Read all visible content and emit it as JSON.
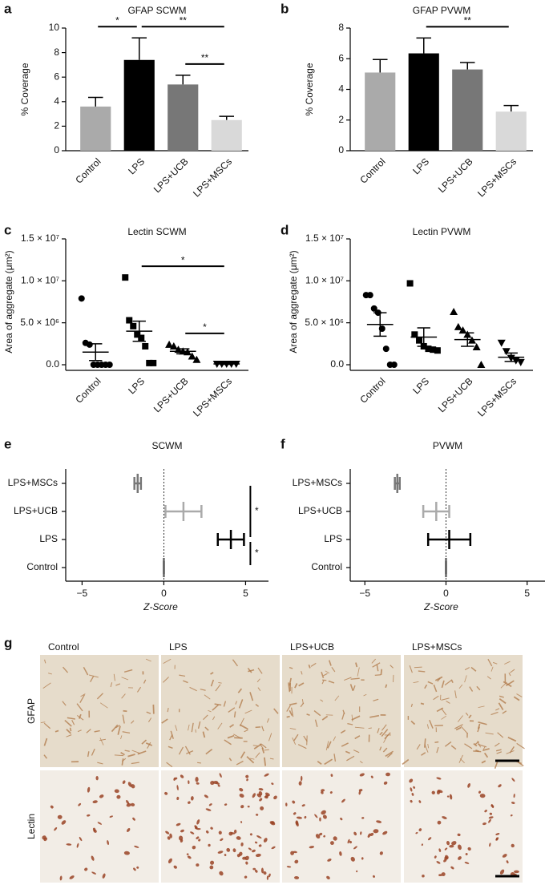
{
  "chart_data": [
    {
      "type": "bar",
      "panel": "a",
      "title": "GFAP SCWM",
      "ylabel": "% Coverage",
      "categories": [
        "Control",
        "LPS",
        "LPS+UCB",
        "LPS+MSCs"
      ],
      "values": [
        3.6,
        7.4,
        5.4,
        2.5
      ],
      "errors": [
        0.75,
        1.8,
        0.75,
        0.3
      ],
      "colors": [
        "#aaaaaa",
        "#000000",
        "#777777",
        "#d9d9d9"
      ],
      "ylim": [
        0,
        10
      ],
      "yticks": [
        0,
        2,
        4,
        6,
        8,
        10
      ],
      "significance": [
        {
          "from": "Control",
          "to": "LPS",
          "label": "*"
        },
        {
          "from": "LPS+UCB",
          "to": "LPS+MSCs",
          "label": "**"
        },
        {
          "from": "LPS",
          "to": "LPS+MSCs",
          "label": "**"
        }
      ]
    },
    {
      "type": "bar",
      "panel": "b",
      "title": "GFAP PVWM",
      "ylabel": "% Coverage",
      "categories": [
        "Control",
        "LPS",
        "LPS+UCB",
        "LPS+MSCs"
      ],
      "values": [
        5.1,
        6.35,
        5.3,
        2.55
      ],
      "errors": [
        0.85,
        1.0,
        0.45,
        0.4
      ],
      "colors": [
        "#aaaaaa",
        "#000000",
        "#777777",
        "#d9d9d9"
      ],
      "ylim": [
        0,
        8
      ],
      "yticks": [
        0,
        2,
        4,
        6,
        8
      ],
      "significance": [
        {
          "from": "LPS",
          "to": "LPS+MSCs",
          "label": "**"
        }
      ]
    },
    {
      "type": "dotplot",
      "panel": "c",
      "title": "Lectin SCWM",
      "ylabel": "Area of aggregate (μm²)",
      "categories": [
        "Control",
        "LPS",
        "LPS+UCB",
        "LPS+MSCs"
      ],
      "markers": [
        "circle",
        "square",
        "triangle",
        "triangle-down"
      ],
      "points": [
        [
          7900000,
          2600000,
          2400000,
          0,
          0,
          0,
          0,
          0
        ],
        [
          10400000,
          5300000,
          4600000,
          3600000,
          3200000,
          2200000,
          200000,
          200000
        ],
        [
          2400000,
          2200000,
          1800000,
          1600000,
          1500000,
          1000000,
          600000
        ],
        [
          100000,
          100000,
          100000,
          100000,
          100000
        ]
      ],
      "means": [
        1500000,
        4000000,
        1600000,
        100000
      ],
      "errors": [
        1000000,
        1200000,
        300000,
        50000
      ],
      "ylim": [
        0,
        15000000
      ],
      "yticks": [
        {
          "value": 0,
          "label": "0.0"
        },
        {
          "value": 5000000,
          "label": "5.0 × 10⁶"
        },
        {
          "value": 10000000,
          "label": "1.0 × 10⁷"
        },
        {
          "value": 15000000,
          "label": "1.5 × 10⁷"
        }
      ],
      "significance": [
        {
          "from": "LPS+UCB",
          "to": "LPS+MSCs",
          "label": "*"
        },
        {
          "from": "LPS",
          "to": "LPS+MSCs",
          "label": "*"
        }
      ]
    },
    {
      "type": "dotplot",
      "panel": "d",
      "title": "Lectin PVWM",
      "ylabel": "Area of aggregate (μm²)",
      "categories": [
        "Control",
        "LPS",
        "LPS+UCB",
        "LPS+MSCs"
      ],
      "markers": [
        "circle",
        "square",
        "triangle",
        "triangle-down"
      ],
      "points": [
        [
          8300000,
          8300000,
          6700000,
          6200000,
          4300000,
          1900000,
          0,
          0
        ],
        [
          9700000,
          3600000,
          2900000,
          2200000,
          1900000,
          1800000,
          1700000
        ],
        [
          6300000,
          4500000,
          4100000,
          3600000,
          2900000,
          2100000,
          0
        ],
        [
          2600000,
          1600000,
          800000,
          500000,
          300000
        ]
      ],
      "means": [
        4800000,
        3300000,
        3000000,
        900000
      ],
      "errors": [
        1400000,
        1100000,
        800000,
        500000
      ],
      "ylim": [
        0,
        15000000
      ],
      "yticks": [
        {
          "value": 0,
          "label": "0.0"
        },
        {
          "value": 5000000,
          "label": "5.0 × 10⁶"
        },
        {
          "value": 10000000,
          "label": "1.0 × 10⁷"
        },
        {
          "value": 15000000,
          "label": "1.5 × 10⁷"
        }
      ],
      "significance": []
    },
    {
      "type": "forest",
      "panel": "e",
      "title": "SCWM",
      "xlabel": "Z-Score",
      "categories": [
        "Control",
        "LPS",
        "LPS+UCB",
        "LPS+MSCs"
      ],
      "values": [
        0,
        4.1,
        1.2,
        -1.6
      ],
      "errors": [
        0,
        0.8,
        1.1,
        0.2
      ],
      "colors": [
        "#666666",
        "#000000",
        "#aaaaaa",
        "#777777"
      ],
      "xlim": [
        -6,
        6.4
      ],
      "xticks": [
        {
          "value": -5,
          "label": "−5"
        },
        0,
        5
      ],
      "significance": [
        {
          "from": "LPS+MSCs",
          "to": "LPS",
          "label": "*"
        },
        {
          "from": "LPS",
          "to": "Control",
          "label": "*"
        }
      ]
    },
    {
      "type": "forest",
      "panel": "f",
      "title": "PVWM",
      "xlabel": "Z-Score",
      "categories": [
        "Control",
        "LPS",
        "LPS+UCB",
        "LPS+MSCs"
      ],
      "values": [
        0,
        0.2,
        -0.6,
        -3.0
      ],
      "errors": [
        0,
        1.3,
        0.8,
        0.15
      ],
      "colors": [
        "#666666",
        "#000000",
        "#aaaaaa",
        "#777777"
      ],
      "xlim": [
        -5.9,
        6.1
      ],
      "xticks": [
        {
          "value": -5,
          "label": "−5"
        },
        0,
        5
      ],
      "significance": []
    }
  ],
  "micrographs": {
    "panel": "g",
    "columns": [
      "Control",
      "LPS",
      "LPS+UCB",
      "LPS+MSCs"
    ],
    "rows": [
      "GFAP",
      "Lectin"
    ]
  }
}
